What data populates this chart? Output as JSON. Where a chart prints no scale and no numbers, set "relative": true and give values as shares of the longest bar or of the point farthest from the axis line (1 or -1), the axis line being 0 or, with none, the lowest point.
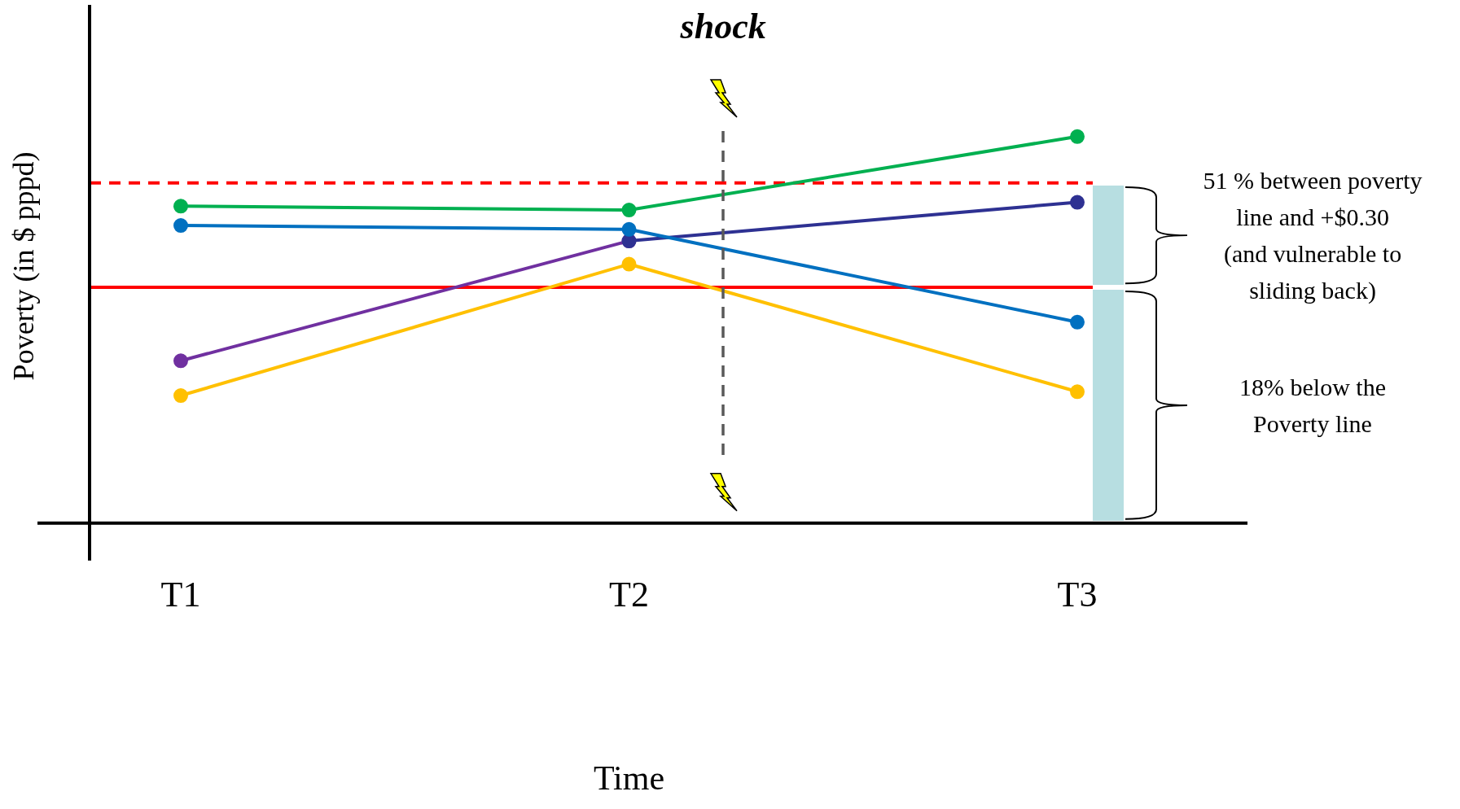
{
  "chart_data": {
    "type": "line",
    "relative": true,
    "xlabel": "Time",
    "ylabel": "Poverty (in $ pppd)",
    "categories": [
      "T1",
      "T2",
      "T3"
    ],
    "marker": "circle",
    "series": [
      {
        "color": "#00b050",
        "values": [
          0.82,
          0.81,
          1
        ]
      },
      {
        "color": "#0070c0",
        "values": [
          0.77,
          0.76,
          0.52
        ]
      },
      {
        "color": "#2e3192",
        "values": [
          null,
          0.73,
          0.83
        ]
      },
      {
        "color": "#7030a0",
        "values": [
          0.42,
          0.73,
          null
        ]
      },
      {
        "color": "#ffc000",
        "values": [
          0.33,
          0.67,
          0.34
        ]
      }
    ],
    "ref_lines": [
      {
        "axis": "y",
        "value": 0.88,
        "color": "#ff0000",
        "line_style": "dashed"
      },
      {
        "axis": "y",
        "value": 0.61,
        "color": "#ff0000",
        "line_style": "solid"
      }
    ],
    "annotations": [
      "shock",
      "51 % between poverty\nline and +$0.30\n(and vulnerable to\nsliding back)",
      "18% below the\nPoverty line"
    ]
  }
}
